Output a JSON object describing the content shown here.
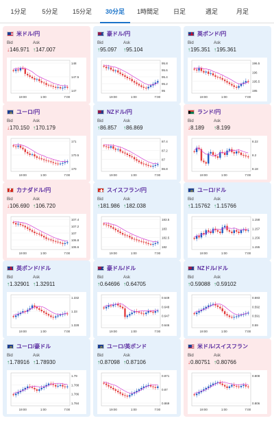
{
  "tabs": [
    "1分足",
    "5分足",
    "15分足",
    "30分足",
    "1時間足",
    "日足",
    "週足",
    "月足"
  ],
  "active_tab": "30分足",
  "colors": {
    "accent": "#1a73c9",
    "pair_title": "#5a2ca0",
    "card_down_bg": "#fde9ea",
    "card_up_bg": "#e6f1fb",
    "candle_up": "#1f5bbf",
    "candle_down": "#e23b3b",
    "ma_line": "#d23bd2",
    "arrow_up": "#1a8a4a",
    "arrow_down": "#d43333"
  },
  "labels": {
    "bid": "Bid",
    "ask": "Ask"
  },
  "x_ticks": [
    "19:00",
    "1:00",
    "7:00"
  ],
  "cards": [
    {
      "pair": "米ドル/円",
      "flag": "us",
      "dir": "down",
      "bid_arrow": "↓",
      "ask_arrow": "↑",
      "bid": "146.971",
      "ask": "147.007",
      "y_ticks": [
        "148",
        "147.5",
        "147"
      ],
      "shape": [
        0.7,
        0.75,
        0.72,
        0.8,
        0.78,
        0.6,
        0.55,
        0.5,
        0.45,
        0.4,
        0.42,
        0.35,
        0.3,
        0.28,
        0.22,
        0.2,
        0.18,
        0.15,
        0.12,
        0.14,
        0.1,
        0.12,
        0.15,
        0.12
      ]
    },
    {
      "pair": "豪ドル/円",
      "flag": "au",
      "dir": "up",
      "bid_arrow": "↑",
      "ask_arrow": "↑",
      "bid": "95.097",
      "ask": "95.104",
      "y_ticks": [
        "95.8",
        "95.6",
        "95.4",
        "95.2",
        "95"
      ],
      "shape": [
        0.85,
        0.8,
        0.82,
        0.75,
        0.7,
        0.72,
        0.65,
        0.6,
        0.55,
        0.5,
        0.45,
        0.42,
        0.35,
        0.3,
        0.25,
        0.2,
        0.15,
        0.12,
        0.1,
        0.15,
        0.2,
        0.25,
        0.3,
        0.35
      ]
    },
    {
      "pair": "英ポンド/円",
      "flag": "gb",
      "dir": "up",
      "bid_arrow": "↑",
      "ask_arrow": "↑",
      "bid": "195.351",
      "ask": "195.361",
      "y_ticks": [
        "196.5",
        "196",
        "195.5",
        "195"
      ],
      "shape": [
        0.75,
        0.72,
        0.8,
        0.7,
        0.65,
        0.68,
        0.6,
        0.62,
        0.55,
        0.5,
        0.48,
        0.45,
        0.4,
        0.35,
        0.3,
        0.25,
        0.2,
        0.15,
        0.12,
        0.18,
        0.25,
        0.3,
        0.35,
        0.32
      ]
    },
    {
      "pair": "ユーロ/円",
      "flag": "eu",
      "dir": "down",
      "bid_arrow": "↓",
      "ask_arrow": "↑",
      "bid": "170.150",
      "ask": "170.179",
      "y_ticks": [
        "171",
        "170.5",
        "170"
      ],
      "shape": [
        0.8,
        0.78,
        0.82,
        0.75,
        0.7,
        0.6,
        0.55,
        0.5,
        0.52,
        0.45,
        0.4,
        0.38,
        0.35,
        0.32,
        0.3,
        0.28,
        0.25,
        0.22,
        0.2,
        0.18,
        0.2,
        0.22,
        0.25,
        0.28
      ]
    },
    {
      "pair": "NZドル/円",
      "flag": "nz",
      "dir": "up",
      "bid_arrow": "↑",
      "ask_arrow": "↑",
      "bid": "86.857",
      "ask": "86.869",
      "y_ticks": [
        "87.4",
        "87.2",
        "87",
        "86.8"
      ],
      "shape": [
        0.8,
        0.78,
        0.75,
        0.8,
        0.72,
        0.68,
        0.7,
        0.62,
        0.58,
        0.55,
        0.5,
        0.45,
        0.42,
        0.35,
        0.3,
        0.25,
        0.2,
        0.18,
        0.15,
        0.12,
        0.1,
        0.12,
        0.15,
        0.18
      ]
    },
    {
      "pair": "ランド/円",
      "flag": "za",
      "dir": "down",
      "bid_arrow": "↓",
      "ask_arrow": "↑",
      "bid": "8.189",
      "ask": "8.199",
      "y_ticks": [
        "8.22",
        "8.2",
        "8.18"
      ],
      "shape": [
        0.6,
        0.75,
        0.7,
        0.3,
        0.25,
        0.2,
        0.55,
        0.6,
        0.5,
        0.45,
        0.4,
        0.6,
        0.58,
        0.5,
        0.65,
        0.7,
        0.6,
        0.55,
        0.62,
        0.58,
        0.5,
        0.48,
        0.45,
        0.42
      ]
    },
    {
      "pair": "カナダドル/円",
      "flag": "ca",
      "dir": "down",
      "bid_arrow": "↓",
      "ask_arrow": "↑",
      "bid": "106.690",
      "ask": "106.720",
      "y_ticks": [
        "107.4",
        "107.2",
        "107",
        "106.8",
        "106.6"
      ],
      "shape": [
        0.85,
        0.8,
        0.82,
        0.78,
        0.75,
        0.7,
        0.65,
        0.6,
        0.55,
        0.5,
        0.48,
        0.45,
        0.4,
        0.35,
        0.3,
        0.28,
        0.25,
        0.22,
        0.2,
        0.18,
        0.15,
        0.12,
        0.15,
        0.18
      ]
    },
    {
      "pair": "スイスフラン/円",
      "flag": "ch",
      "dir": "up",
      "bid_arrow": "↑",
      "ask_arrow": "↑",
      "bid": "181.986",
      "ask": "182.038",
      "y_ticks": [
        "183.5",
        "183",
        "182.5",
        "182"
      ],
      "shape": [
        0.8,
        0.78,
        0.75,
        0.7,
        0.65,
        0.6,
        0.55,
        0.5,
        0.45,
        0.42,
        0.4,
        0.35,
        0.3,
        0.28,
        0.25,
        0.22,
        0.2,
        0.18,
        0.15,
        0.12,
        0.1,
        0.12,
        0.15,
        0.18
      ]
    },
    {
      "pair": "ユーロ/ドル",
      "flag": "eu",
      "dir": "up",
      "bid_arrow": "↑",
      "ask_arrow": "↑",
      "bid": "1.15762",
      "ask": "1.15766",
      "y_ticks": [
        "1.158",
        "1.157",
        "1.156",
        "1.155"
      ],
      "shape": [
        0.3,
        0.4,
        0.35,
        0.5,
        0.45,
        0.6,
        0.55,
        0.5,
        0.65,
        0.6,
        0.55,
        0.5,
        0.7,
        0.75,
        0.6,
        0.55,
        0.5,
        0.6,
        0.55,
        0.5,
        0.6,
        0.62,
        0.58,
        0.6
      ]
    },
    {
      "pair": "英ポンド/ドル",
      "flag": "gb",
      "dir": "up",
      "bid_arrow": "↑",
      "ask_arrow": "↑",
      "bid": "1.32901",
      "ask": "1.32911",
      "y_ticks": [
        "1.332",
        "1.33",
        "1.328"
      ],
      "shape": [
        0.3,
        0.35,
        0.4,
        0.45,
        0.5,
        0.48,
        0.55,
        0.6,
        0.7,
        0.65,
        0.6,
        0.55,
        0.5,
        0.45,
        0.4,
        0.35,
        0.3,
        0.28,
        0.32,
        0.35,
        0.38,
        0.4,
        0.42,
        0.4
      ]
    },
    {
      "pair": "豪ドル/ドル",
      "flag": "au",
      "dir": "up",
      "bid_arrow": "↑",
      "ask_arrow": "↑",
      "bid": "0.64696",
      "ask": "0.64705",
      "y_ticks": [
        "0.649",
        "0.648",
        "0.647",
        "0.646"
      ],
      "shape": [
        0.6,
        0.65,
        0.7,
        0.68,
        0.72,
        0.75,
        0.7,
        0.65,
        0.6,
        0.3,
        0.35,
        0.4,
        0.45,
        0.5,
        0.48,
        0.45,
        0.42,
        0.4,
        0.45,
        0.5,
        0.48,
        0.45,
        0.5,
        0.52
      ]
    },
    {
      "pair": "NZドル/ドル",
      "flag": "nz",
      "dir": "up",
      "bid_arrow": "↑",
      "ask_arrow": "↑",
      "bid": "0.59088",
      "ask": "0.59102",
      "y_ticks": [
        "0.593",
        "0.592",
        "0.591",
        "0.59"
      ],
      "shape": [
        0.4,
        0.45,
        0.5,
        0.55,
        0.6,
        0.65,
        0.7,
        0.72,
        0.75,
        0.7,
        0.65,
        0.6,
        0.5,
        0.4,
        0.35,
        0.3,
        0.28,
        0.3,
        0.32,
        0.35,
        0.38,
        0.4,
        0.42,
        0.45
      ]
    },
    {
      "pair": "ユーロ/豪ドル",
      "flag": "eu",
      "dir": "up",
      "bid_arrow": "↑",
      "ask_arrow": "↑",
      "bid": "1.78916",
      "ask": "1.78930",
      "y_ticks": [
        "1.79",
        "1.788",
        "1.786",
        "1.784"
      ],
      "shape": [
        0.3,
        0.35,
        0.4,
        0.45,
        0.5,
        0.55,
        0.6,
        0.58,
        0.55,
        0.5,
        0.45,
        0.5,
        0.55,
        0.6,
        0.65,
        0.7,
        0.68,
        0.65,
        0.6,
        0.62,
        0.65,
        0.6,
        0.58,
        0.6
      ]
    },
    {
      "pair": "ユーロ/英ポンド",
      "flag": "eu",
      "dir": "up",
      "bid_arrow": "↑",
      "ask_arrow": "↑",
      "bid": "0.87098",
      "ask": "0.87106",
      "y_ticks": [
        "0.871",
        "0.87",
        "0.869"
      ],
      "shape": [
        0.7,
        0.65,
        0.6,
        0.55,
        0.5,
        0.45,
        0.4,
        0.35,
        0.3,
        0.28,
        0.25,
        0.3,
        0.35,
        0.4,
        0.45,
        0.5,
        0.55,
        0.6,
        0.62,
        0.65,
        0.6,
        0.58,
        0.55,
        0.6
      ]
    },
    {
      "pair": "米ドル/スイスフラン",
      "flag": "us",
      "dir": "down",
      "bid_arrow": "↓",
      "ask_arrow": "↑",
      "bid": "0.80751",
      "ask": "0.80766",
      "y_ticks": [
        "0.808",
        "0.806"
      ],
      "shape": [
        0.3,
        0.35,
        0.4,
        0.45,
        0.5,
        0.55,
        0.6,
        0.65,
        0.7,
        0.72,
        0.75,
        0.7,
        0.65,
        0.6,
        0.55,
        0.6,
        0.65,
        0.62,
        0.6,
        0.58,
        0.62,
        0.65,
        0.6,
        0.58
      ]
    }
  ]
}
